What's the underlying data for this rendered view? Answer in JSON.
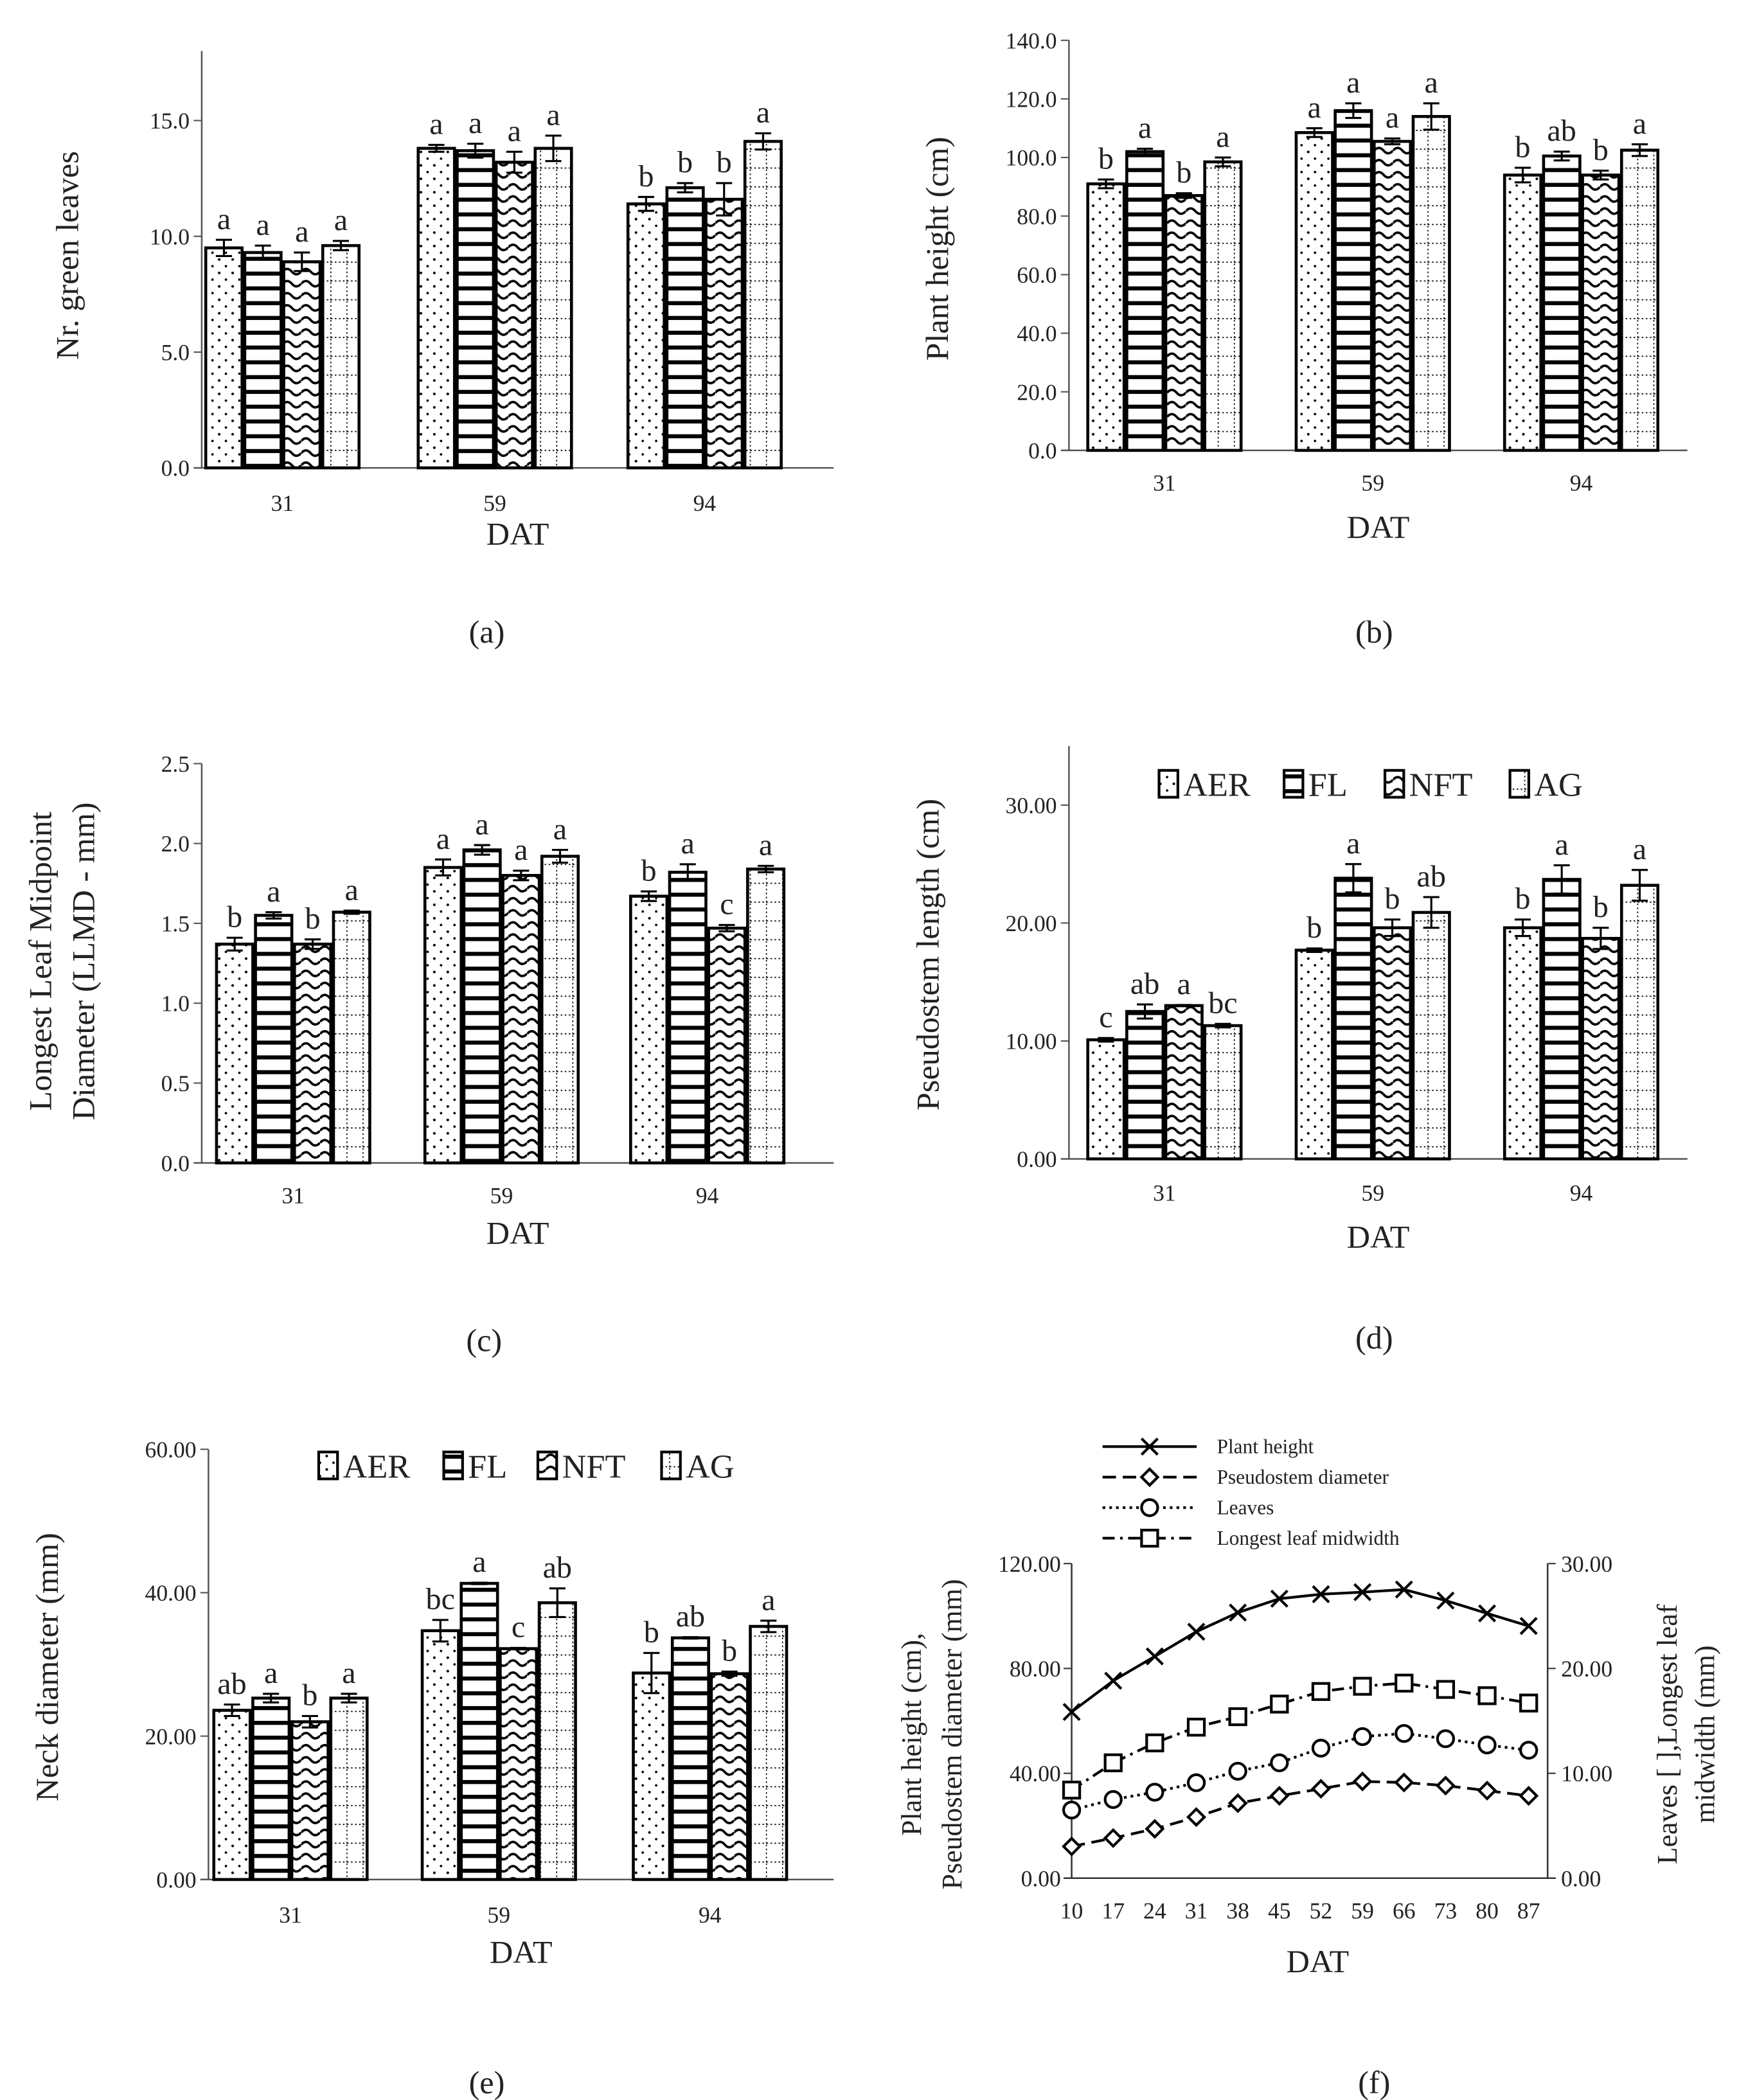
{
  "legend_treatments": [
    "AER",
    "FL",
    "NFT",
    "AG"
  ],
  "chart_data": [
    {
      "panel": "(a)",
      "type": "bar",
      "xlabel": "DAT",
      "ylabel": [
        "Nr. green leaves"
      ],
      "categories": [
        "31",
        "59",
        "94"
      ],
      "ylim": [
        0,
        18
      ],
      "yticks": [
        "0.0",
        "5.0",
        "10.0",
        "15.0"
      ],
      "ytick_values": [
        0,
        5,
        10,
        15
      ],
      "series": [
        {
          "name": "AER",
          "values": [
            9.5,
            13.8,
            11.4
          ],
          "errors": [
            0.35,
            0.15,
            0.3
          ],
          "letters": [
            "a",
            "a",
            "b"
          ]
        },
        {
          "name": "FL",
          "values": [
            9.3,
            13.7,
            12.1
          ],
          "errors": [
            0.3,
            0.3,
            0.2
          ],
          "letters": [
            "a",
            "a",
            "b"
          ]
        },
        {
          "name": "NFT",
          "values": [
            8.9,
            13.2,
            11.6
          ],
          "errors": [
            0.4,
            0.45,
            0.7
          ],
          "letters": [
            "a",
            "a",
            "b"
          ]
        },
        {
          "name": "AG",
          "values": [
            9.6,
            13.8,
            14.1
          ],
          "errors": [
            0.2,
            0.55,
            0.35
          ],
          "letters": [
            "a",
            "a",
            "a"
          ]
        }
      ],
      "legend": false
    },
    {
      "panel": "(b)",
      "type": "bar",
      "xlabel": "DAT",
      "ylabel": [
        "Plant height (cm)"
      ],
      "categories": [
        "31",
        "59",
        "94"
      ],
      "ylim": [
        0,
        140
      ],
      "yticks": [
        "0.0",
        "20.0",
        "40.0",
        "60.0",
        "80.0",
        "100.0",
        "120.0",
        "140.0"
      ],
      "ytick_values": [
        0,
        20,
        40,
        60,
        80,
        100,
        120,
        140
      ],
      "series": [
        {
          "name": "AER",
          "values": [
            91,
            108.5,
            94
          ],
          "errors": [
            1.5,
            1.5,
            2.5
          ],
          "letters": [
            "b",
            "a",
            "b"
          ]
        },
        {
          "name": "FL",
          "values": [
            102,
            116,
            100.5
          ],
          "errors": [
            1,
            2.5,
            1.5
          ],
          "letters": [
            "a",
            "a",
            "ab"
          ]
        },
        {
          "name": "NFT",
          "values": [
            87,
            105.5,
            94
          ],
          "errors": [
            0.8,
            1,
            1.5
          ],
          "letters": [
            "b",
            "a",
            "b"
          ]
        },
        {
          "name": "AG",
          "values": [
            98.5,
            114,
            102.5
          ],
          "errors": [
            1.5,
            4.5,
            2
          ],
          "letters": [
            "a",
            "a",
            "a"
          ]
        }
      ],
      "legend": false
    },
    {
      "panel": "(c)",
      "type": "bar",
      "xlabel": "DAT",
      "ylabel": [
        "Longest Leaf Midpoint",
        "Diameter (LLMD - mm)"
      ],
      "categories": [
        "31",
        "59",
        "94"
      ],
      "ylim": [
        0,
        2.5
      ],
      "yticks": [
        "0.0",
        "0.5",
        "1.0",
        "1.5",
        "2.0",
        "2.5"
      ],
      "ytick_values": [
        0,
        0.5,
        1,
        1.5,
        2,
        2.5
      ],
      "series": [
        {
          "name": "AER",
          "values": [
            1.37,
            1.85,
            1.67
          ],
          "errors": [
            0.04,
            0.05,
            0.03
          ],
          "letters": [
            "b",
            "a",
            "b"
          ]
        },
        {
          "name": "FL",
          "values": [
            1.55,
            1.96,
            1.82
          ],
          "errors": [
            0.02,
            0.03,
            0.05
          ],
          "letters": [
            "a",
            "a",
            "a"
          ]
        },
        {
          "name": "NFT",
          "values": [
            1.37,
            1.8,
            1.47
          ],
          "errors": [
            0.03,
            0.03,
            0.02
          ],
          "letters": [
            "b",
            "a",
            "c"
          ]
        },
        {
          "name": "AG",
          "values": [
            1.57,
            1.92,
            1.84
          ],
          "errors": [
            0.01,
            0.04,
            0.02
          ],
          "letters": [
            "a",
            "a",
            "a"
          ]
        }
      ],
      "legend": false
    },
    {
      "panel": "(d)",
      "type": "bar",
      "xlabel": "DAT",
      "ylabel": [
        "Pseudostem length (cm)"
      ],
      "categories": [
        "31",
        "59",
        "94"
      ],
      "ylim": [
        0,
        35
      ],
      "yticks": [
        "0.00",
        "10.00",
        "20.00",
        "30.00"
      ],
      "ytick_values": [
        0,
        10,
        20,
        30
      ],
      "series": [
        {
          "name": "AER",
          "values": [
            10.1,
            17.7,
            19.6
          ],
          "errors": [
            0.15,
            0.15,
            0.7
          ],
          "letters": [
            "c",
            "b",
            "b"
          ]
        },
        {
          "name": "FL",
          "values": [
            12.5,
            23.8,
            23.7
          ],
          "errors": [
            0.6,
            1.2,
            1.2
          ],
          "letters": [
            "ab",
            "a",
            "a"
          ]
        },
        {
          "name": "NFT",
          "values": [
            13.0,
            19.6,
            18.7
          ],
          "errors": [
            0.05,
            0.7,
            0.9
          ],
          "letters": [
            "a",
            "b",
            "b"
          ]
        },
        {
          "name": "AG",
          "values": [
            11.3,
            20.9,
            23.2
          ],
          "errors": [
            0.15,
            1.3,
            1.3
          ],
          "letters": [
            "bc",
            "ab",
            "a"
          ]
        }
      ],
      "legend": true,
      "legend_position": "top"
    },
    {
      "panel": "(e)",
      "type": "bar",
      "xlabel": "DAT",
      "ylabel": [
        "Neck diameter (mm)"
      ],
      "categories": [
        "31",
        "59",
        "94"
      ],
      "ylim": [
        0,
        60
      ],
      "yticks": [
        "0.00",
        "20.00",
        "40.00",
        "60.00"
      ],
      "ytick_values": [
        0,
        20,
        40,
        60
      ],
      "series": [
        {
          "name": "AER",
          "values": [
            23.6,
            34.7,
            28.8
          ],
          "errors": [
            0.8,
            1.5,
            2.8
          ],
          "letters": [
            "ab",
            "bc",
            "b"
          ]
        },
        {
          "name": "FL",
          "values": [
            25.3,
            41.3,
            33.7
          ],
          "errors": [
            0.6,
            0.1,
            0.1
          ],
          "letters": [
            "a",
            "a",
            "ab"
          ]
        },
        {
          "name": "NFT",
          "values": [
            22.0,
            32.2,
            28.7
          ],
          "errors": [
            0.8,
            0.1,
            0.3
          ],
          "letters": [
            "b",
            "c",
            "b"
          ]
        },
        {
          "name": "AG",
          "values": [
            25.3,
            38.6,
            35.3
          ],
          "errors": [
            0.6,
            2.0,
            0.8
          ],
          "letters": [
            "a",
            "ab",
            "a"
          ]
        }
      ],
      "legend": true,
      "legend_position": "top"
    },
    {
      "panel": "(f)",
      "type": "line",
      "xlabel": "DAT",
      "ylabel": [
        "Plant height (cm),",
        "Pseudostem diameter (mm)"
      ],
      "y2label": [
        "Leaves [ ],Longest leaf",
        "midwidth (mm)"
      ],
      "x": [
        10,
        17,
        24,
        31,
        38,
        45,
        52,
        59,
        66,
        73,
        80,
        87
      ],
      "ylim": [
        0,
        120
      ],
      "yticks": [
        "0.00",
        "40.00",
        "80.00",
        "120.00"
      ],
      "ytick_values": [
        0,
        40,
        80,
        120
      ],
      "y2lim": [
        0,
        30
      ],
      "y2ticks": [
        "0.00",
        "10.00",
        "20.00",
        "30.00"
      ],
      "y2tick_values": [
        0,
        10,
        20,
        30
      ],
      "series": [
        {
          "name": "Plant height",
          "axis": "left",
          "marker": "x",
          "line": "solid",
          "values": [
            63.4,
            75.3,
            84.6,
            94.0,
            101.3,
            106.6,
            108.3,
            109.1,
            110.1,
            105.9,
            101.0,
            96.2
          ]
        },
        {
          "name": "Pseudostem diameter",
          "axis": "left",
          "marker": "diamond",
          "line": "dashed",
          "values": [
            12.1,
            15.3,
            18.8,
            23.3,
            28.6,
            31.4,
            34.1,
            36.9,
            36.5,
            35.3,
            33.4,
            31.4
          ]
        },
        {
          "name": "Leaves",
          "axis": "right",
          "marker": "circle",
          "line": "dotted",
          "values": [
            6.5,
            7.5,
            8.2,
            9.1,
            10.2,
            11.0,
            12.4,
            13.5,
            13.8,
            13.3,
            12.7,
            12.2
          ]
        },
        {
          "name": "Longest leaf midwidth",
          "axis": "right",
          "marker": "square",
          "line": "dashdot",
          "values": [
            8.4,
            11.0,
            12.9,
            14.4,
            15.4,
            16.6,
            17.8,
            18.3,
            18.6,
            18.0,
            17.4,
            16.7
          ]
        }
      ],
      "legend_position": "top"
    }
  ]
}
